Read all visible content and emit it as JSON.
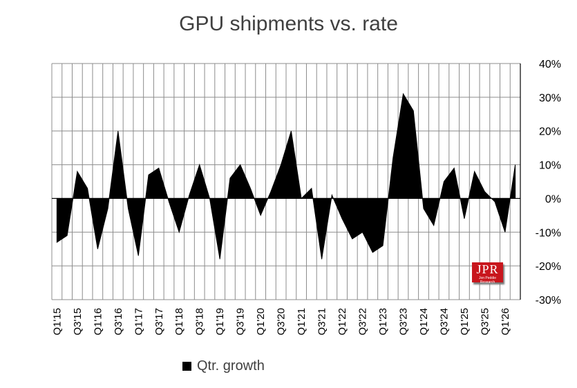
{
  "chart_data": {
    "type": "area",
    "title": "GPU shipments vs. rate",
    "xlabel": "",
    "ylabel": "",
    "ylim": [
      -0.3,
      0.4
    ],
    "y_ticks": [
      "40%",
      "30%",
      "20%",
      "10%",
      "0%",
      "-10%",
      "-20%",
      "-30%"
    ],
    "y_tick_values": [
      0.4,
      0.3,
      0.2,
      0.1,
      0.0,
      -0.1,
      -0.2,
      -0.3
    ],
    "x_labels": [
      "Q1'15",
      "Q3'15",
      "Q1'16",
      "Q3'16",
      "Q1'17",
      "Q3'17",
      "Q1'18",
      "Q3'18",
      "Q1'19",
      "Q3'19",
      "Q1'20",
      "Q3'20",
      "Q1'21",
      "Q3'21",
      "Q1'22",
      "Q3'22",
      "Q1'23",
      "Q3'23",
      "Q1'24",
      "Q3'24",
      "Q1'25",
      "Q3'25",
      "Q1'26"
    ],
    "grid": true,
    "legend_position": "bottom",
    "series": [
      {
        "name": "Qtr. growth",
        "color": "#000000",
        "x": [
          "Q1'15",
          "Q2'15",
          "Q3'15",
          "Q4'15",
          "Q1'16",
          "Q2'16",
          "Q3'16",
          "Q4'16",
          "Q1'17",
          "Q2'17",
          "Q3'17",
          "Q4'17",
          "Q1'18",
          "Q2'18",
          "Q3'18",
          "Q4'18",
          "Q1'19",
          "Q2'19",
          "Q3'19",
          "Q4'19",
          "Q1'20",
          "Q2'20",
          "Q3'20",
          "Q4'20",
          "Q1'21",
          "Q2'21",
          "Q3'21",
          "Q4'21",
          "Q1'22",
          "Q2'22",
          "Q3'22",
          "Q4'22",
          "Q1'23",
          "Q2'23",
          "Q3'23",
          "Q4'23",
          "Q1'24",
          "Q2'24",
          "Q3'24",
          "Q4'24",
          "Q1'25",
          "Q2'25",
          "Q3'25",
          "Q4'25",
          "Q1'26",
          "Q2'26"
        ],
        "values": [
          -0.13,
          -0.11,
          0.08,
          0.03,
          -0.15,
          -0.03,
          0.2,
          -0.03,
          -0.17,
          0.07,
          0.09,
          -0.01,
          -0.1,
          0.01,
          0.1,
          0.0,
          -0.18,
          0.06,
          0.1,
          0.03,
          -0.05,
          0.02,
          0.1,
          0.2,
          0.0,
          0.03,
          -0.18,
          0.01,
          -0.06,
          -0.12,
          -0.1,
          -0.16,
          -0.14,
          0.12,
          0.31,
          0.26,
          -0.03,
          -0.08,
          0.05,
          0.09,
          -0.06,
          0.08,
          0.02,
          -0.01,
          -0.1,
          0.1
        ]
      }
    ]
  },
  "legend": {
    "label": "Qtr. growth"
  },
  "logo": {
    "main": "JPR",
    "sub": "Jon Peddie Research"
  }
}
